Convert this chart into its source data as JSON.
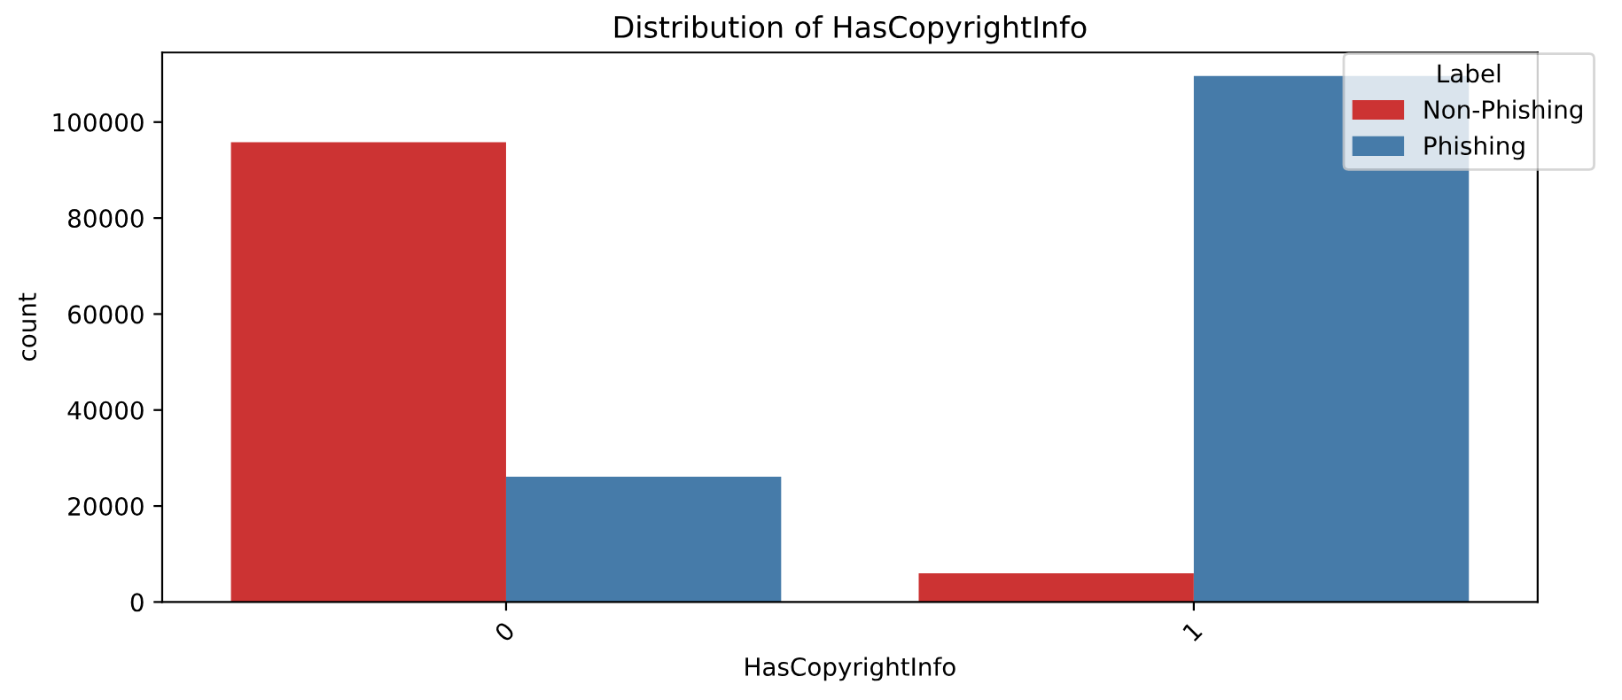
{
  "chart_data": {
    "type": "bar",
    "title": "Distribution of HasCopyrightInfo",
    "xlabel": "HasCopyrightInfo",
    "ylabel": "count",
    "legend_title": "Label",
    "categories": [
      "0",
      "1"
    ],
    "series": [
      {
        "name": "Non-Phishing",
        "color": "#cc3333",
        "values": [
          95800,
          6000
        ]
      },
      {
        "name": "Phishing",
        "color": "#467ba9",
        "values": [
          26100,
          109600
        ]
      }
    ],
    "ylim": [
      0,
      114500
    ],
    "yticks": [
      0,
      20000,
      40000,
      60000,
      80000,
      100000
    ],
    "grid": false,
    "legend": "top right"
  }
}
